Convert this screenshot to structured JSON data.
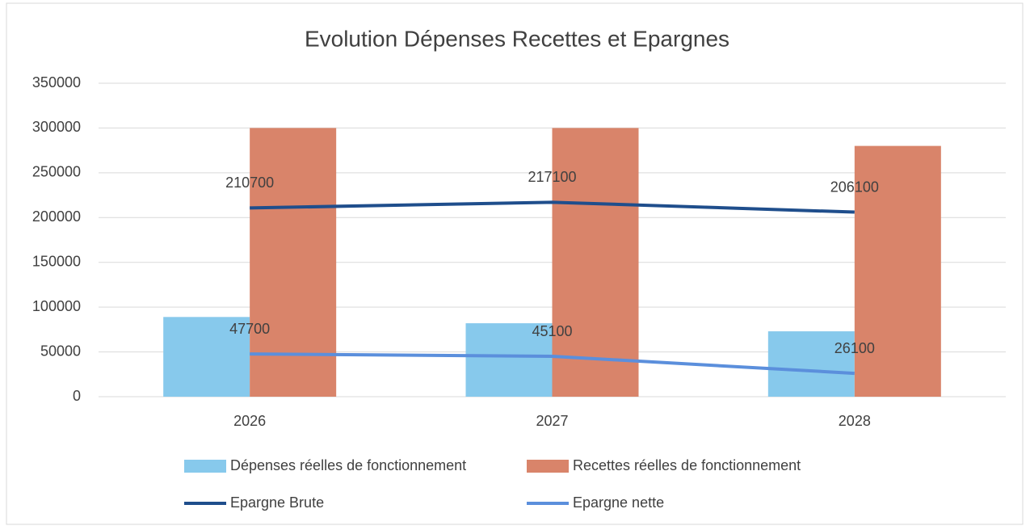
{
  "chart_data": {
    "type": "bar",
    "title": "Evolution Dépenses Recettes et Epargnes",
    "categories": [
      "2026",
      "2027",
      "2028"
    ],
    "series": [
      {
        "name": "Dépenses réelles de fonctionnement",
        "type": "bar",
        "color": "#87c9ec",
        "values": [
          89000,
          82000,
          73000
        ]
      },
      {
        "name": "Recettes réelles de fonctionnement",
        "type": "bar",
        "color": "#d9846a",
        "values": [
          300000,
          300000,
          280000
        ]
      },
      {
        "name": "Epargne Brute",
        "type": "line",
        "color": "#1f4e8c",
        "values": [
          210700,
          217100,
          206100
        ]
      },
      {
        "name": "Epargne nette",
        "type": "line",
        "color": "#5b8fdc",
        "values": [
          47700,
          45100,
          26100
        ]
      }
    ],
    "ylim": [
      0,
      350000
    ],
    "yticks": [
      0,
      50000,
      100000,
      150000,
      200000,
      250000,
      300000,
      350000
    ],
    "grid": true
  }
}
